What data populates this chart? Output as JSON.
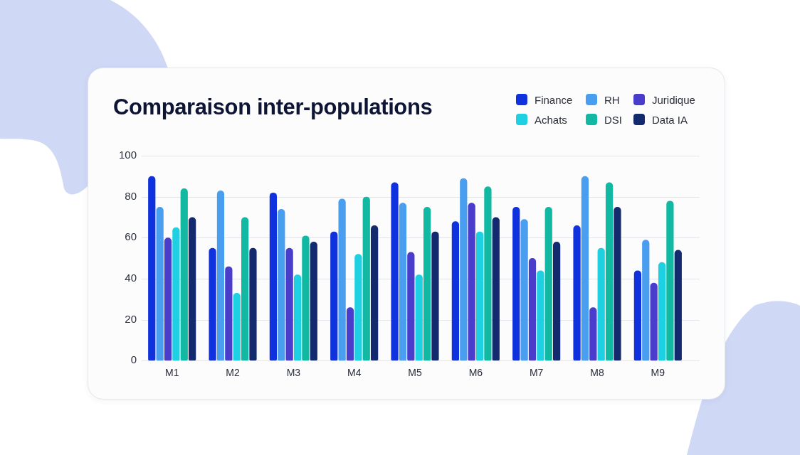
{
  "chart_data": {
    "type": "bar",
    "title": "Comparaison inter-populations",
    "categories": [
      "M1",
      "M2",
      "M3",
      "M4",
      "M5",
      "M6",
      "M7",
      "M8",
      "M9"
    ],
    "series": [
      {
        "name": "Finance",
        "color": "#0f32de",
        "values": [
          90,
          55,
          82,
          63,
          87,
          68,
          75,
          66,
          44
        ]
      },
      {
        "name": "RH",
        "color": "#4a9ef0",
        "values": [
          75,
          83,
          74,
          79,
          77,
          89,
          69,
          90,
          59
        ]
      },
      {
        "name": "Juridique",
        "color": "#4a3dcc",
        "values": [
          60,
          46,
          55,
          26,
          53,
          77,
          50,
          26,
          38
        ]
      },
      {
        "name": "Achats",
        "color": "#1dd0e2",
        "values": [
          65,
          33,
          42,
          52,
          42,
          63,
          44,
          55,
          48
        ]
      },
      {
        "name": "DSI",
        "color": "#12b9a2",
        "values": [
          84,
          70,
          61,
          80,
          75,
          85,
          75,
          87,
          78
        ]
      },
      {
        "name": "Data IA",
        "color": "#142a6e",
        "values": [
          70,
          55,
          58,
          66,
          63,
          70,
          58,
          75,
          54
        ]
      }
    ],
    "ylim": [
      0,
      100
    ],
    "yticks": [
      0,
      20,
      40,
      60,
      80,
      100
    ],
    "grid": "y",
    "legend": "top right"
  }
}
